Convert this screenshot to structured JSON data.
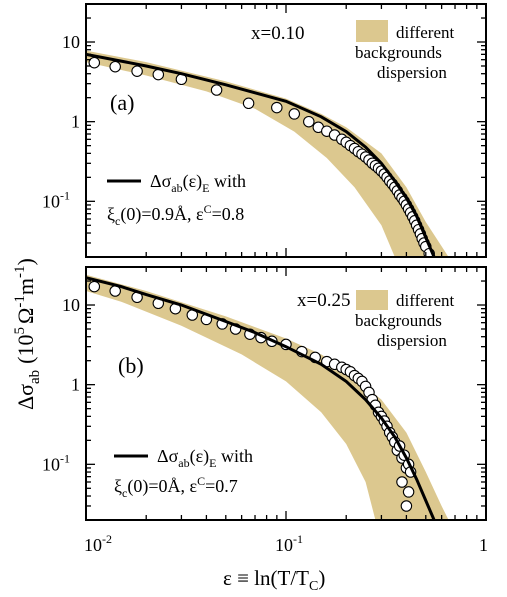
{
  "figure": {
    "ylabel_main": "Δσ",
    "ylabel_sub": "ab",
    "ylabel_unit_open": "(10",
    "ylabel_unit_exp": "5",
    "ylabel_unit_rest": "Ω",
    "ylabel_unit_exp2": "-1",
    "ylabel_unit_m": "m",
    "ylabel_unit_exp3": "-1",
    "ylabel_unit_close": ")",
    "xlabel_main": "ε ≡ ln(T/T",
    "xlabel_sub": "C",
    "xlabel_close": ")",
    "x_tick_labels": [
      {
        "base": "10",
        "exp": "-2"
      },
      {
        "base": "10",
        "exp": "-1"
      },
      {
        "base": "1",
        "exp": ""
      }
    ]
  },
  "chart_data": [
    {
      "type": "scatter",
      "panel_label": "(a)",
      "annotation": "x=0.10",
      "xscale": "log",
      "yscale": "log",
      "xlim": [
        0.01,
        1
      ],
      "ylim": [
        0.02,
        30
      ],
      "y_tick_labels": [
        {
          "v": 10,
          "base": "10",
          "exp": ""
        },
        {
          "v": 1,
          "base": "1",
          "exp": ""
        },
        {
          "v": 0.1,
          "base": "10",
          "exp": "-1"
        }
      ],
      "legend_band": {
        "line1": "different",
        "line2": "backgrounds",
        "line3": "dispersion",
        "color": "#dcc88f"
      },
      "legend_fit": {
        "l1_pre": "Δσ",
        "l1_sub": "ab",
        "l1_mid": "(ε)",
        "l1_sub2": "E",
        "l1_post": " with",
        "l2_pre": "ξ",
        "l2_sub": "c",
        "l2_mid": "(0)=0.9Å, ε",
        "l2_sup": "C",
        "l2_post": "=0.8"
      },
      "band_upper": [
        [
          0.01,
          7.8
        ],
        [
          0.02,
          5.6
        ],
        [
          0.05,
          3.2
        ],
        [
          0.1,
          1.95
        ],
        [
          0.15,
          1.25
        ],
        [
          0.2,
          0.85
        ],
        [
          0.3,
          0.4
        ],
        [
          0.4,
          0.15
        ],
        [
          0.5,
          0.055
        ],
        [
          0.65,
          0.02
        ]
      ],
      "band_lower": [
        [
          0.65,
          0.02
        ],
        [
          0.35,
          0.02
        ],
        [
          0.3,
          0.05
        ],
        [
          0.22,
          0.15
        ],
        [
          0.16,
          0.35
        ],
        [
          0.11,
          0.75
        ],
        [
          0.07,
          1.45
        ],
        [
          0.04,
          2.4
        ],
        [
          0.02,
          3.8
        ],
        [
          0.01,
          5.6
        ]
      ],
      "fit_curve": [
        [
          0.01,
          7.0
        ],
        [
          0.02,
          5.0
        ],
        [
          0.03,
          4.0
        ],
        [
          0.05,
          2.9
        ],
        [
          0.07,
          2.3
        ],
        [
          0.1,
          1.8
        ],
        [
          0.15,
          1.15
        ],
        [
          0.2,
          0.75
        ],
        [
          0.25,
          0.48
        ],
        [
          0.3,
          0.3
        ],
        [
          0.35,
          0.18
        ],
        [
          0.4,
          0.11
        ],
        [
          0.45,
          0.065
        ],
        [
          0.5,
          0.035
        ],
        [
          0.55,
          0.02
        ]
      ],
      "points": [
        [
          0.011,
          5.5
        ],
        [
          0.014,
          4.9
        ],
        [
          0.018,
          4.3
        ],
        [
          0.023,
          3.9
        ],
        [
          0.03,
          3.4
        ],
        [
          0.045,
          2.5
        ],
        [
          0.065,
          1.7
        ],
        [
          0.09,
          1.5
        ],
        [
          0.11,
          1.25
        ],
        [
          0.13,
          1.0
        ],
        [
          0.145,
          0.85
        ],
        [
          0.16,
          0.76
        ],
        [
          0.175,
          0.68
        ],
        [
          0.19,
          0.6
        ],
        [
          0.2,
          0.55
        ],
        [
          0.21,
          0.5
        ],
        [
          0.22,
          0.46
        ],
        [
          0.23,
          0.42
        ],
        [
          0.24,
          0.39
        ],
        [
          0.25,
          0.36
        ],
        [
          0.26,
          0.33
        ],
        [
          0.27,
          0.3
        ],
        [
          0.28,
          0.28
        ],
        [
          0.29,
          0.26
        ],
        [
          0.3,
          0.24
        ],
        [
          0.31,
          0.22
        ],
        [
          0.32,
          0.2
        ],
        [
          0.33,
          0.18
        ],
        [
          0.34,
          0.165
        ],
        [
          0.35,
          0.15
        ],
        [
          0.36,
          0.135
        ],
        [
          0.37,
          0.12
        ],
        [
          0.38,
          0.11
        ],
        [
          0.39,
          0.1
        ],
        [
          0.4,
          0.09
        ],
        [
          0.41,
          0.08
        ],
        [
          0.42,
          0.072
        ],
        [
          0.43,
          0.064
        ],
        [
          0.44,
          0.057
        ],
        [
          0.45,
          0.05
        ],
        [
          0.46,
          0.044
        ],
        [
          0.47,
          0.039
        ],
        [
          0.48,
          0.034
        ],
        [
          0.49,
          0.03
        ],
        [
          0.5,
          0.027
        ],
        [
          0.52,
          0.022
        ]
      ]
    },
    {
      "type": "scatter",
      "panel_label": "(b)",
      "annotation": "x=0.25",
      "xscale": "log",
      "yscale": "log",
      "xlim": [
        0.01,
        1
      ],
      "ylim": [
        0.02,
        30
      ],
      "y_tick_labels": [
        {
          "v": 10,
          "base": "10",
          "exp": ""
        },
        {
          "v": 1,
          "base": "1",
          "exp": ""
        },
        {
          "v": 0.1,
          "base": "10",
          "exp": "-1"
        }
      ],
      "legend_band": {
        "line1": "different",
        "line2": "backgrounds",
        "line3": "dispersion",
        "color": "#dcc88f"
      },
      "legend_fit": {
        "l1_pre": "Δσ",
        "l1_sub": "ab",
        "l1_mid": "(ε)",
        "l1_sub2": "E",
        "l1_post": " with",
        "l2_pre": "ξ",
        "l2_sub": "c",
        "l2_mid": "(0)=0Å, ε",
        "l2_sup": "C",
        "l2_post": "=0.7"
      },
      "band_upper": [
        [
          0.01,
          24
        ],
        [
          0.02,
          15
        ],
        [
          0.05,
          7.2
        ],
        [
          0.1,
          3.8
        ],
        [
          0.15,
          2.4
        ],
        [
          0.2,
          1.5
        ],
        [
          0.3,
          0.65
        ],
        [
          0.4,
          0.25
        ],
        [
          0.5,
          0.08
        ],
        [
          0.6,
          0.03
        ],
        [
          0.65,
          0.02
        ]
      ],
      "band_lower": [
        [
          0.65,
          0.02
        ],
        [
          0.28,
          0.02
        ],
        [
          0.25,
          0.06
        ],
        [
          0.2,
          0.18
        ],
        [
          0.15,
          0.45
        ],
        [
          0.1,
          1.1
        ],
        [
          0.06,
          2.4
        ],
        [
          0.03,
          5.5
        ],
        [
          0.015,
          11
        ],
        [
          0.01,
          15
        ]
      ],
      "fit_curve": [
        [
          0.01,
          22
        ],
        [
          0.015,
          17
        ],
        [
          0.02,
          13.5
        ],
        [
          0.03,
          10
        ],
        [
          0.05,
          6.2
        ],
        [
          0.07,
          4.5
        ],
        [
          0.1,
          3.0
        ],
        [
          0.15,
          1.8
        ],
        [
          0.2,
          1.1
        ],
        [
          0.25,
          0.65
        ],
        [
          0.3,
          0.38
        ],
        [
          0.35,
          0.22
        ],
        [
          0.4,
          0.12
        ],
        [
          0.45,
          0.065
        ],
        [
          0.5,
          0.035
        ],
        [
          0.55,
          0.02
        ]
      ],
      "points": [
        [
          0.011,
          17
        ],
        [
          0.014,
          15
        ],
        [
          0.018,
          12.5
        ],
        [
          0.023,
          10.5
        ],
        [
          0.028,
          9
        ],
        [
          0.034,
          7.5
        ],
        [
          0.04,
          6.6
        ],
        [
          0.048,
          5.8
        ],
        [
          0.056,
          5.0
        ],
        [
          0.066,
          4.3
        ],
        [
          0.075,
          3.9
        ],
        [
          0.085,
          3.5
        ],
        [
          0.1,
          3.2
        ],
        [
          0.12,
          2.6
        ],
        [
          0.14,
          2.2
        ],
        [
          0.16,
          1.95
        ],
        [
          0.175,
          1.8
        ],
        [
          0.19,
          1.65
        ],
        [
          0.2,
          1.55
        ],
        [
          0.21,
          1.45
        ],
        [
          0.22,
          1.3
        ],
        [
          0.23,
          1.2
        ],
        [
          0.24,
          1.1
        ],
        [
          0.25,
          0.95
        ],
        [
          0.26,
          0.8
        ],
        [
          0.27,
          0.65
        ],
        [
          0.28,
          0.55
        ],
        [
          0.29,
          0.45
        ],
        [
          0.3,
          0.4
        ],
        [
          0.31,
          0.35
        ],
        [
          0.32,
          0.3
        ],
        [
          0.33,
          0.25
        ],
        [
          0.34,
          0.22
        ],
        [
          0.35,
          0.19
        ],
        [
          0.36,
          0.15
        ],
        [
          0.37,
          0.17
        ],
        [
          0.38,
          0.12
        ],
        [
          0.39,
          0.13
        ],
        [
          0.4,
          0.09
        ],
        [
          0.41,
          0.1
        ],
        [
          0.42,
          0.08
        ],
        [
          0.38,
          0.06
        ],
        [
          0.41,
          0.045
        ],
        [
          0.4,
          0.03
        ]
      ]
    }
  ]
}
